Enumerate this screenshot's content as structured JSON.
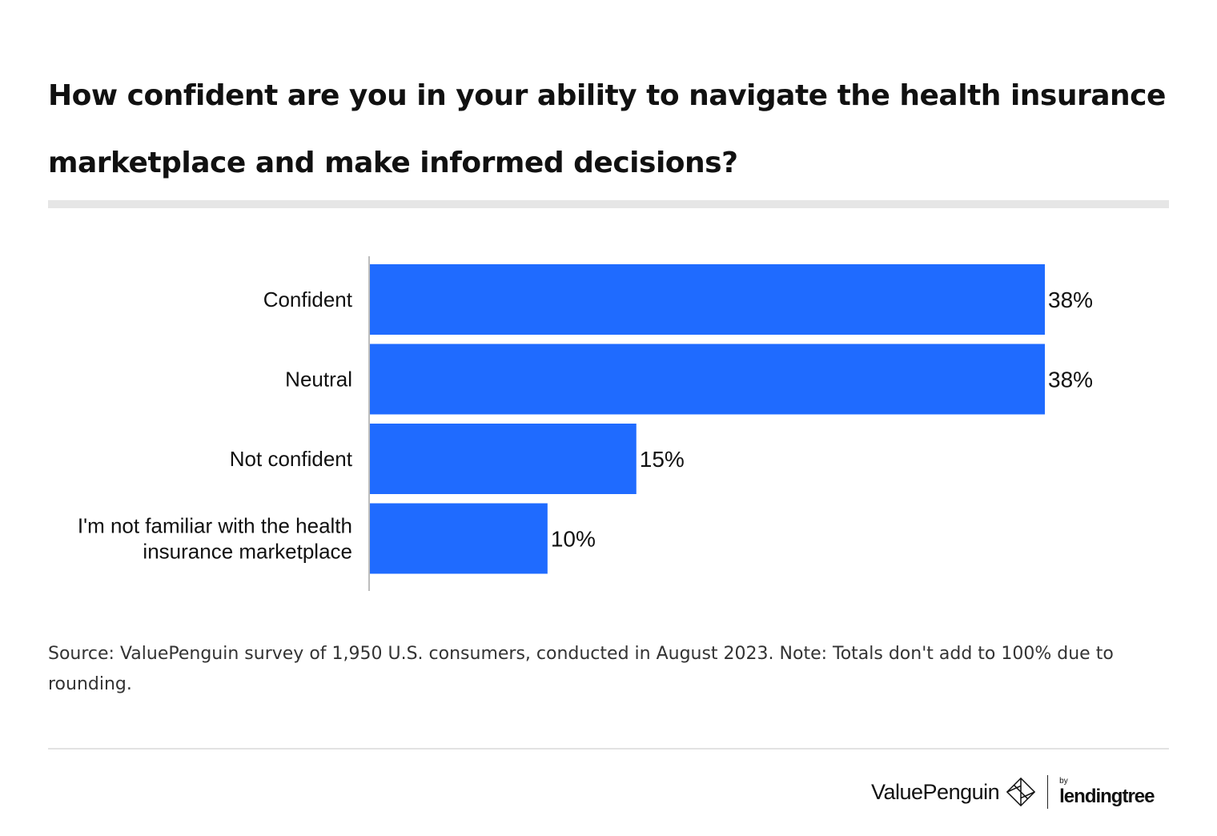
{
  "title": "How confident are you in your ability to navigate the health insurance marketplace and make informed decisions?",
  "source": "Source: ValuePenguin survey of 1,950 U.S. consumers, conducted in August 2023. Note: Totals don't add to 100% due to rounding.",
  "brand": {
    "name": "ValuePenguin",
    "by": "by",
    "partner": "lendingtree"
  },
  "colors": {
    "bar": "#1f6bff",
    "title_rule": "#e6e6e6"
  },
  "chart_data": {
    "type": "bar",
    "orientation": "horizontal",
    "title": "How confident are you in your ability to navigate the health insurance marketplace and make informed decisions?",
    "xlabel": "",
    "ylabel": "",
    "xlim": [
      0,
      38
    ],
    "grid": false,
    "categories": [
      [
        "Confident"
      ],
      [
        "Neutral"
      ],
      [
        "Not confident"
      ],
      [
        "I'm not familiar with the health",
        "insurance marketplace"
      ]
    ],
    "values": [
      38,
      38,
      15,
      10
    ],
    "value_labels": [
      "38%",
      "38%",
      "15%",
      "10%"
    ]
  }
}
